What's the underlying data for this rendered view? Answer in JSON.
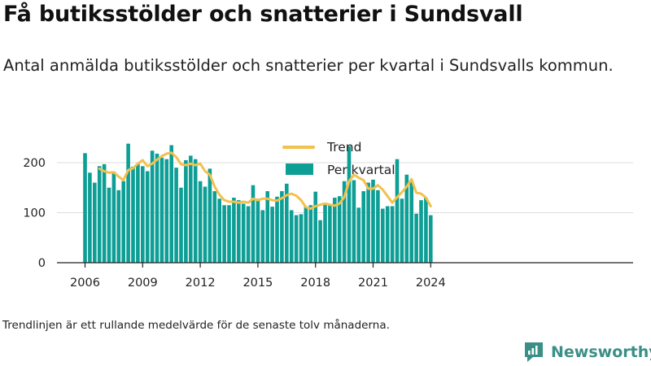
{
  "title": "Få butiksstölder och snatterier i Sundsvall",
  "subtitle": "Antal anmälda butiksstölder och snatterier per kvartal i Sundsvalls kommun.",
  "footnote": "Trendlinjen är ett rullande medelvärde för de senaste tolv månaderna.",
  "logo": {
    "text": "Newsworthy",
    "icon": "newsworthy-logo-icon",
    "color": "#3a8f86"
  },
  "chart_data": {
    "type": "bar",
    "title": "",
    "xlabel": "",
    "ylabel": "",
    "ylim": [
      0,
      250
    ],
    "yticks": [
      0,
      100,
      200
    ],
    "xticks": [
      "2006",
      "2009",
      "2012",
      "2015",
      "2018",
      "2021",
      "2024"
    ],
    "grid": true,
    "legend_position": "top-center",
    "colors": {
      "bars": "#0d9e95",
      "trend": "#f2c14e",
      "grid": "#dddddd",
      "axis": "#222222"
    },
    "categories": [
      "2006 K1",
      "2006 K2",
      "2006 K3",
      "2006 K4",
      "2007 K1",
      "2007 K2",
      "2007 K3",
      "2007 K4",
      "2008 K1",
      "2008 K2",
      "2008 K3",
      "2008 K4",
      "2009 K1",
      "2009 K2",
      "2009 K3",
      "2009 K4",
      "2010 K1",
      "2010 K2",
      "2010 K3",
      "2010 K4",
      "2011 K1",
      "2011 K2",
      "2011 K3",
      "2011 K4",
      "2012 K1",
      "2012 K2",
      "2012 K3",
      "2012 K4",
      "2013 K1",
      "2013 K2",
      "2013 K3",
      "2013 K4",
      "2014 K1",
      "2014 K2",
      "2014 K3",
      "2014 K4",
      "2015 K1",
      "2015 K2",
      "2015 K3",
      "2015 K4",
      "2016 K1",
      "2016 K2",
      "2016 K3",
      "2016 K4",
      "2017 K1",
      "2017 K2",
      "2017 K3",
      "2017 K4",
      "2018 K1",
      "2018 K2",
      "2018 K3",
      "2018 K4",
      "2019 K1",
      "2019 K2",
      "2019 K3",
      "2019 K4",
      "2020 K1",
      "2020 K2",
      "2020 K3",
      "2020 K4",
      "2021 K1",
      "2021 K2",
      "2021 K3",
      "2021 K4",
      "2022 K1",
      "2022 K2",
      "2022 K3",
      "2022 K4",
      "2023 K1",
      "2023 K2",
      "2023 K3",
      "2023 K4",
      "2024 K1"
    ],
    "series": [
      {
        "name": "Per kvartal",
        "type": "bar",
        "values": [
          219,
          180,
          160,
          193,
          197,
          150,
          182,
          145,
          163,
          238,
          192,
          198,
          193,
          183,
          224,
          218,
          210,
          207,
          235,
          190,
          150,
          205,
          214,
          207,
          163,
          152,
          188,
          143,
          128,
          115,
          115,
          130,
          125,
          118,
          113,
          155,
          128,
          105,
          143,
          112,
          132,
          143,
          158,
          105,
          95,
          97,
          112,
          115,
          142,
          85,
          120,
          115,
          130,
          133,
          163,
          233,
          165,
          110,
          143,
          160,
          166,
          145,
          108,
          113,
          113,
          207,
          128,
          176,
          165,
          98,
          125,
          130,
          95
        ]
      },
      {
        "name": "Trend",
        "type": "line",
        "values": [
          null,
          null,
          null,
          188,
          183,
          180,
          181,
          172,
          165,
          185,
          189,
          198,
          205,
          193,
          198,
          206,
          213,
          218,
          220,
          211,
          197,
          195,
          198,
          195,
          198,
          183,
          176,
          152,
          136,
          125,
          122,
          122,
          120,
          122,
          120,
          128,
          125,
          128,
          128,
          125,
          124,
          129,
          135,
          138,
          134,
          125,
          111,
          108,
          113,
          116,
          118,
          116,
          114,
          118,
          131,
          163,
          176,
          170,
          165,
          148,
          148,
          155,
          146,
          133,
          120,
          131,
          141,
          152,
          167,
          140,
          138,
          130,
          113
        ]
      }
    ]
  }
}
